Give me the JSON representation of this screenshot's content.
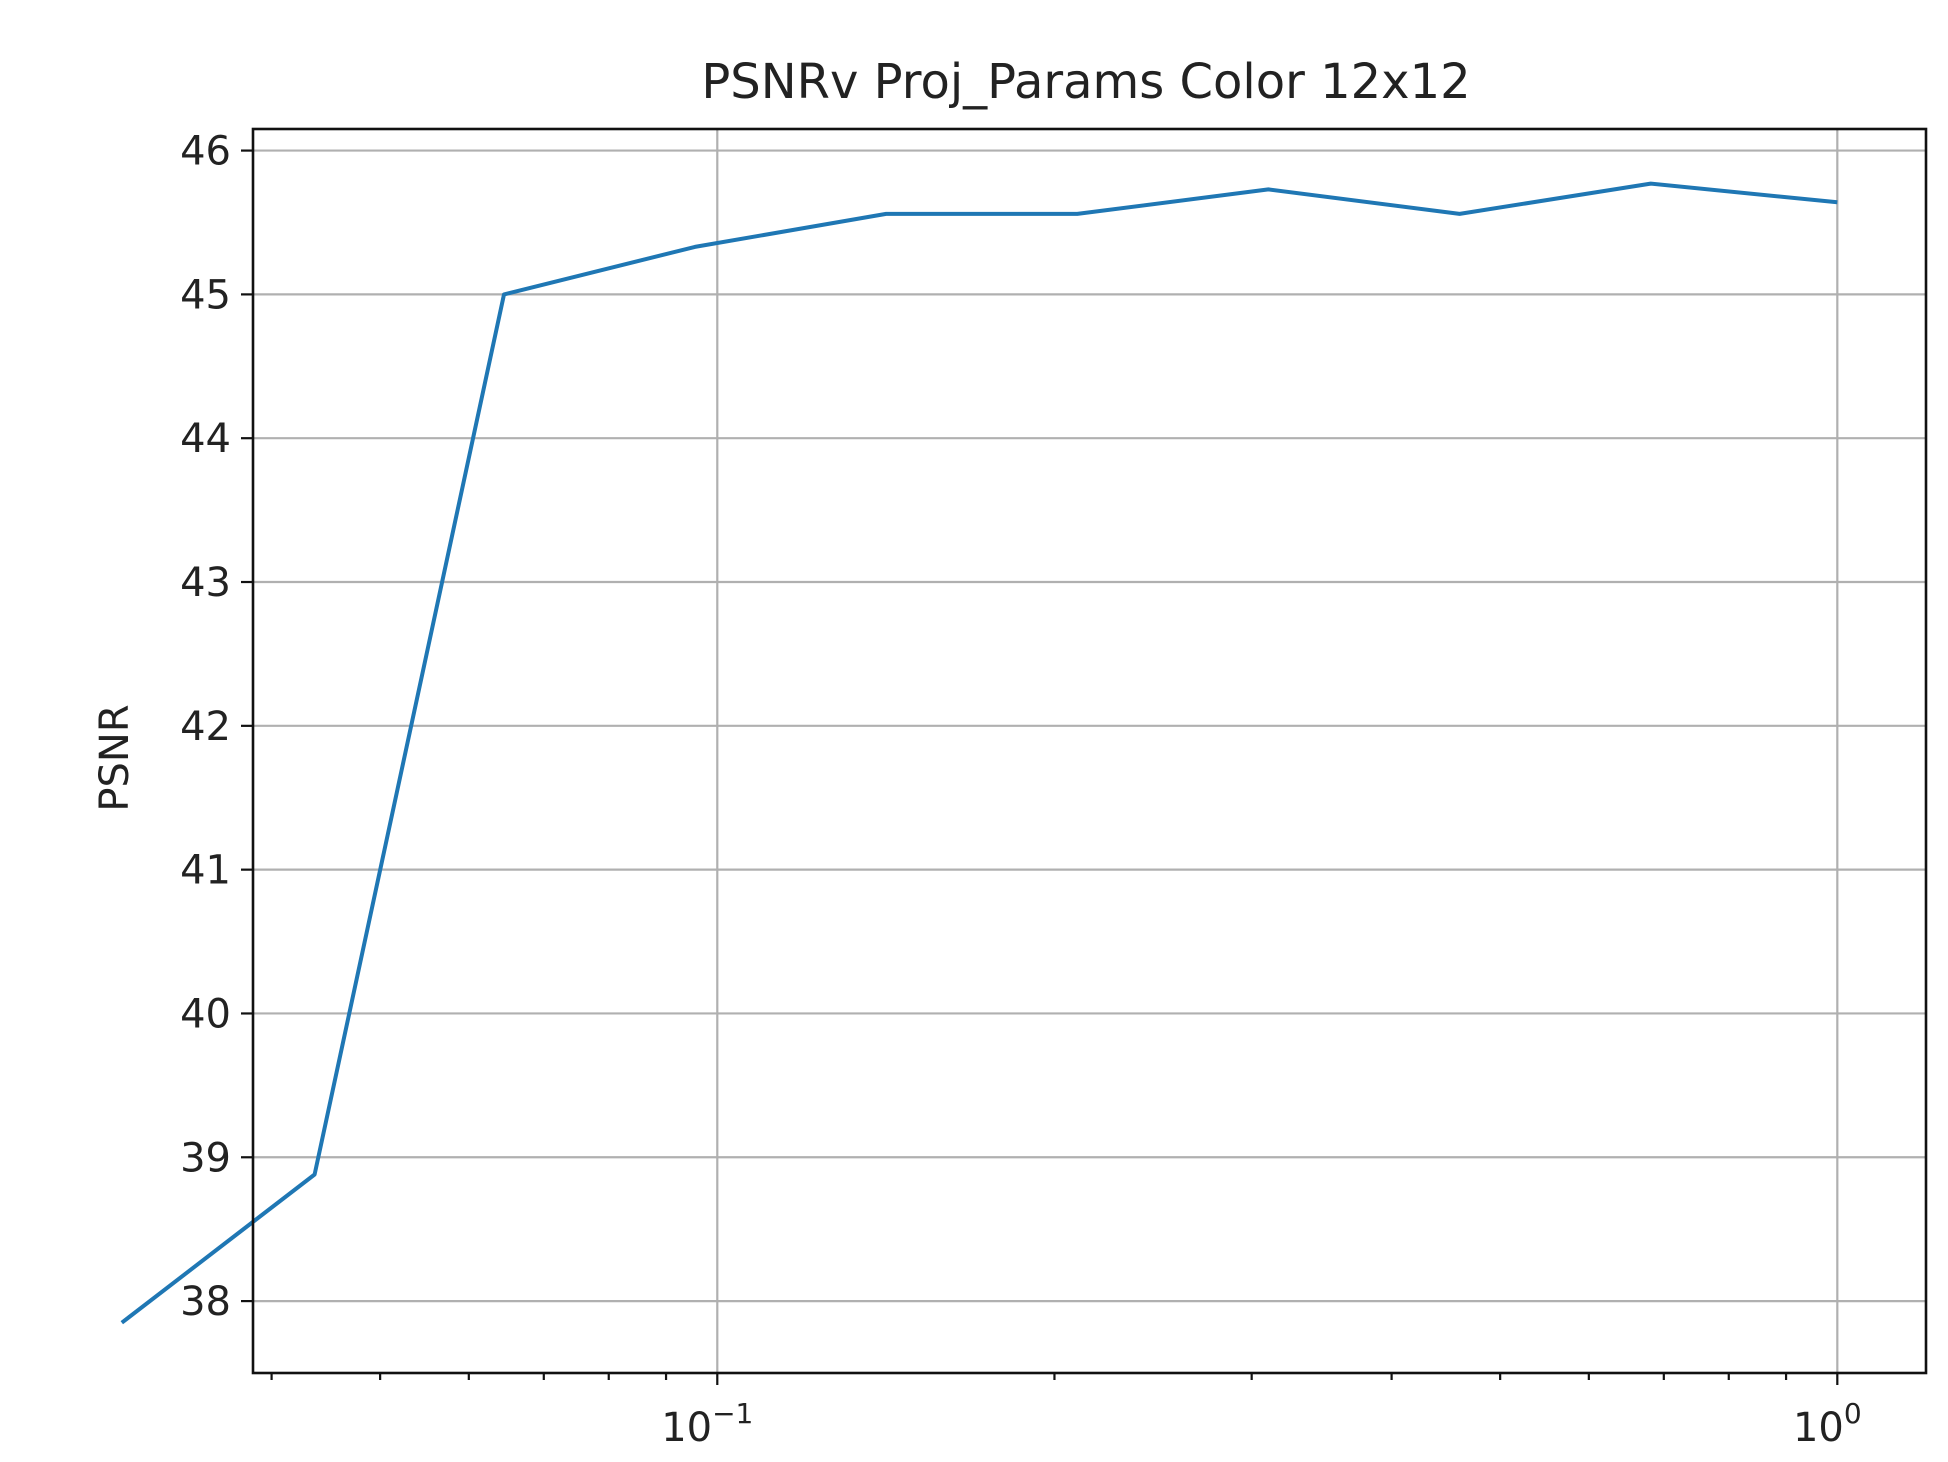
{
  "chart_data": {
    "type": "line",
    "title": "PSNRv Proj_Params Color 12x12",
    "xlabel": "",
    "ylabel": "PSNR",
    "xscale": "log",
    "xlim": [
      0.0385,
      1.2
    ],
    "ylim": [
      37.5,
      46.15
    ],
    "grid": true,
    "x_ticks": [
      {
        "value": 0.1,
        "base": "10",
        "exp": "−1"
      },
      {
        "value": 1,
        "base": "10",
        "exp": "0"
      }
    ],
    "y_ticks": [
      38,
      39,
      40,
      41,
      42,
      43,
      44,
      45,
      46
    ],
    "series": [
      {
        "color": "#1f77b4",
        "x": [
          0.0294,
          0.0437,
          0.0645,
          0.0955,
          0.1415,
          0.2096,
          0.3105,
          0.46,
          0.6813,
          1.0
        ],
        "y": [
          37.85,
          38.88,
          45.0,
          45.33,
          45.56,
          45.56,
          45.73,
          45.56,
          45.77,
          45.64
        ]
      }
    ]
  }
}
